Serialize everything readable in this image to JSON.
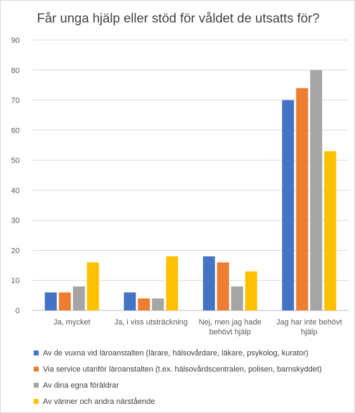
{
  "chart_data": {
    "type": "bar",
    "title": "Får unga hjälp eller stöd för våldet de utsatts för?",
    "xlabel": "",
    "ylabel": "",
    "ylim": [
      0,
      90
    ],
    "yticks": [
      "0",
      "10",
      "20",
      "30",
      "40",
      "50",
      "60",
      "70",
      "80",
      "90"
    ],
    "grid": true,
    "legend_position": "bottom-left",
    "categories": [
      [
        "Ja, mycket"
      ],
      [
        "Ja, i viss utsträckning"
      ],
      [
        "Nej, men jag hade",
        "behövt hjälp"
      ],
      [
        "Jag har inte behövt",
        "hjälp"
      ]
    ],
    "series": [
      {
        "name": "Av de vuxna vid läroanstalten (lärare, hälsovårdare, läkare, psykolog, kurator)",
        "color": "#4472c4",
        "values": [
          6,
          6,
          18,
          70
        ]
      },
      {
        "name": "Via service utanför läroanstalten (t.ex. hälsovårdscentralen, polisen, barnskyddet)",
        "color": "#ed7d31",
        "values": [
          6,
          4,
          16,
          74
        ]
      },
      {
        "name": "Av dina egna föräldrar",
        "color": "#a5a5a5",
        "values": [
          8,
          4,
          8,
          80
        ]
      },
      {
        "name": "Av vänner och andra närstående",
        "color": "#ffc000",
        "values": [
          16,
          18,
          13,
          53
        ]
      }
    ]
  }
}
